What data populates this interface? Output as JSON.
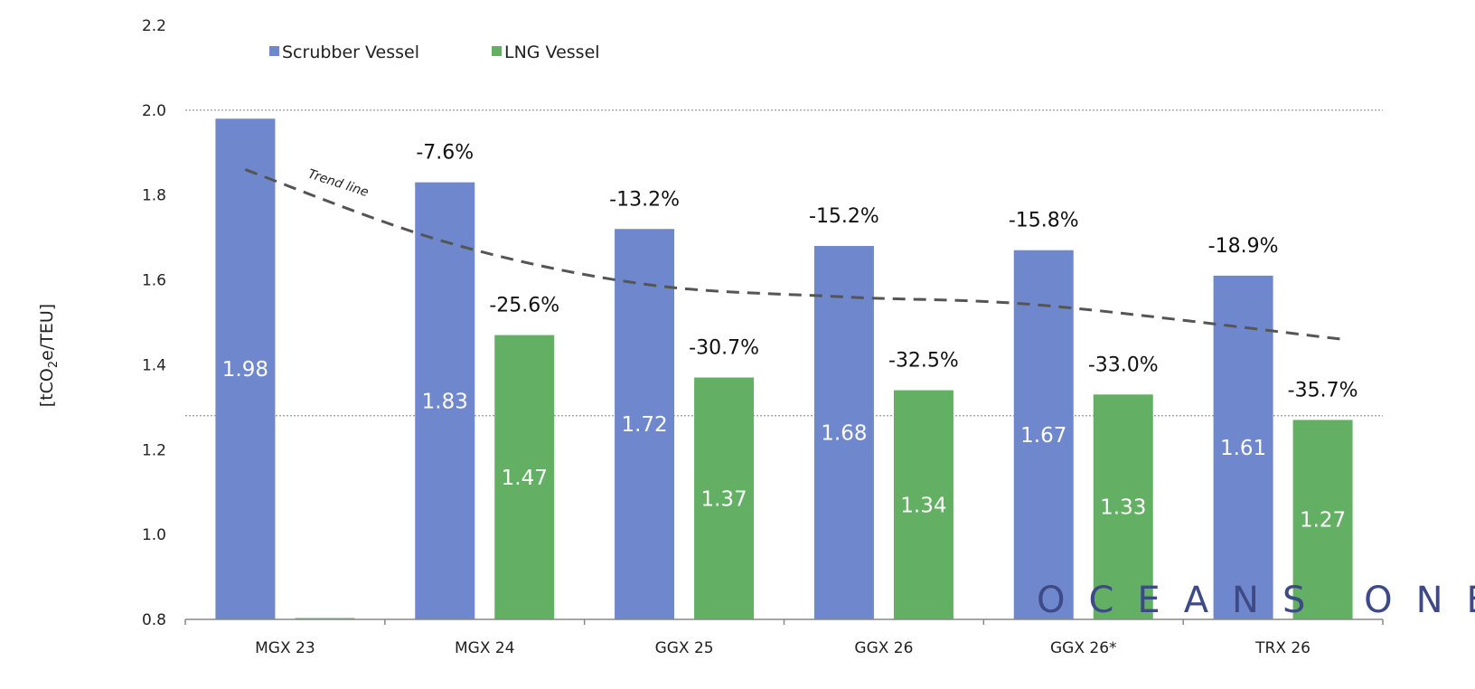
{
  "chart_data": {
    "type": "bar",
    "ylabel_pre": "[tCO",
    "ylabel_sub": "2",
    "ylabel_post": "e/TEU]",
    "ylim": [
      0.8,
      2.2
    ],
    "yticks": [
      "0.8",
      "1.0",
      "1.2",
      "1.4",
      "1.6",
      "1.8",
      "2.0",
      "2.2"
    ],
    "grid_values": [
      2.0,
      1.28
    ],
    "legend_placement": "top-left",
    "categories": [
      "MGX 23",
      "MGX 24",
      "GGX 25",
      "GGX 26",
      "GGX 26*",
      "TRX 26"
    ],
    "series": [
      {
        "name": "Scrubber Vessel",
        "color": "#6f87cc",
        "values": [
          1.98,
          1.83,
          1.72,
          1.68,
          1.67,
          1.61
        ],
        "value_labels": [
          "1.98",
          "1.83",
          "1.72",
          "1.68",
          "1.67",
          "1.61"
        ],
        "change_labels": [
          "",
          "-7.6%",
          "-13.2%",
          "-15.2%",
          "-15.8%",
          "-18.9%"
        ]
      },
      {
        "name": "LNG Vessel",
        "color": "#63b065",
        "values": [
          0.8,
          1.47,
          1.37,
          1.34,
          1.33,
          1.27
        ],
        "value_labels": [
          "",
          "1.47",
          "1.37",
          "1.34",
          "1.33",
          "1.27"
        ],
        "change_labels": [
          "",
          "-25.6%",
          "-30.7%",
          "-32.5%",
          "-33.0%",
          "-35.7%"
        ]
      }
    ],
    "trend_line": {
      "label": "Trend line",
      "color": "#555555",
      "values": [
        1.86,
        1.69,
        1.59,
        1.56,
        1.54,
        1.46
      ]
    }
  },
  "watermark": "OCEANS ONE"
}
